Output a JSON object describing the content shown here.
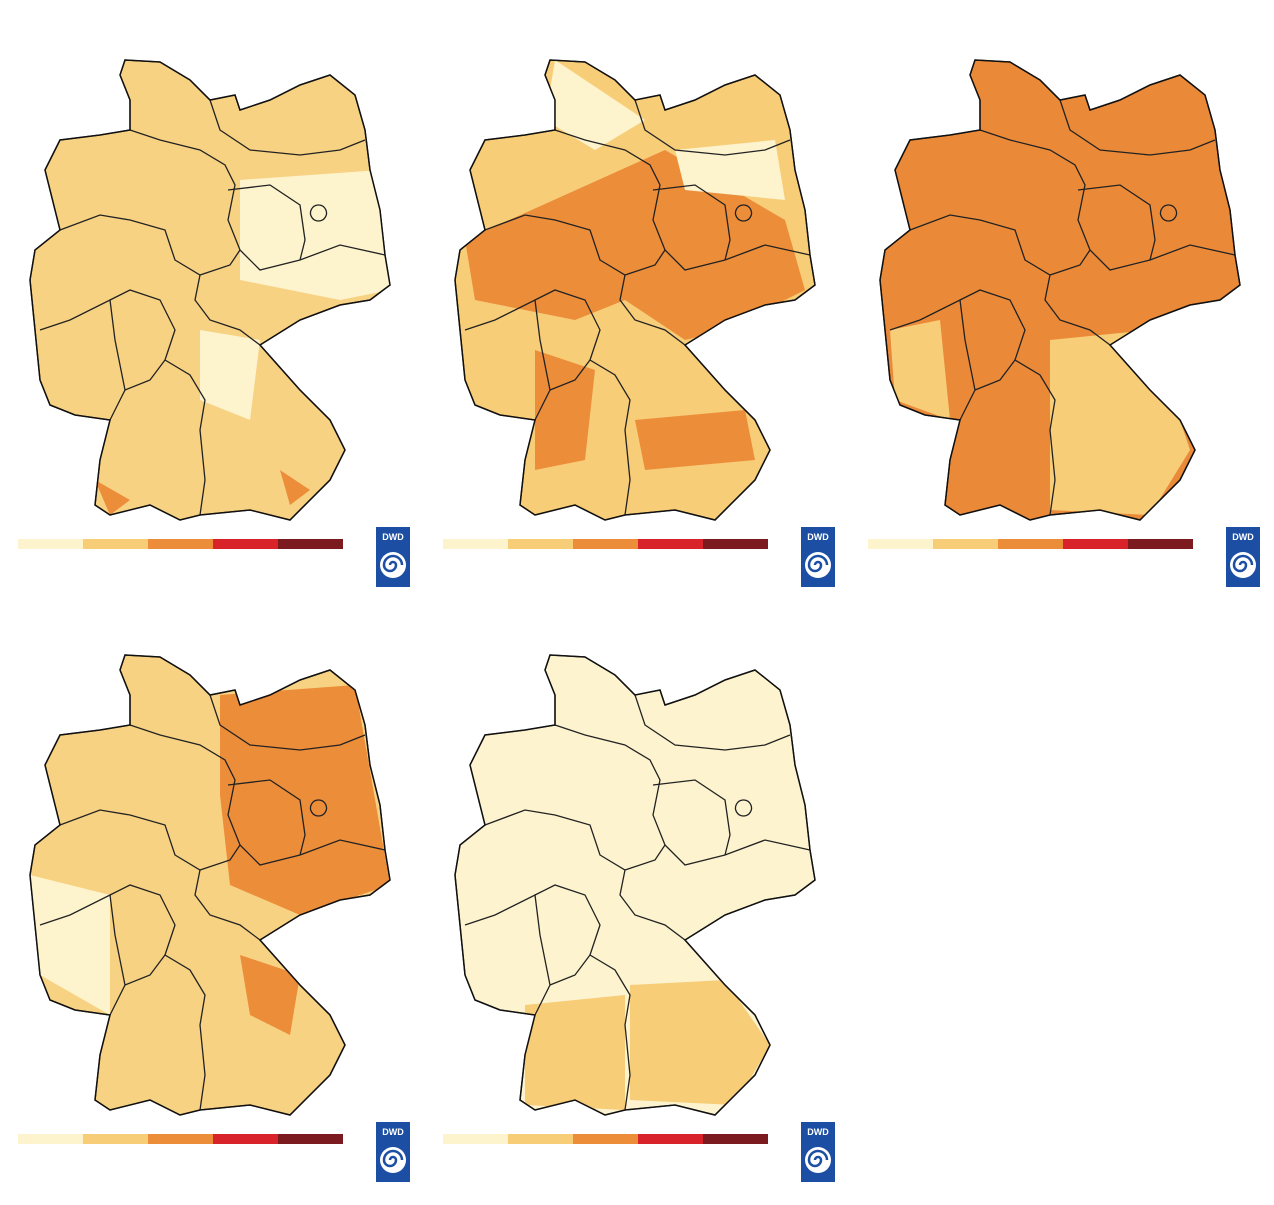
{
  "panels": [
    {
      "logo": "DWD"
    },
    {
      "logo": "DWD"
    },
    {
      "logo": "DWD"
    },
    {
      "logo": "DWD"
    },
    {
      "logo": "DWD"
    }
  ]
}
